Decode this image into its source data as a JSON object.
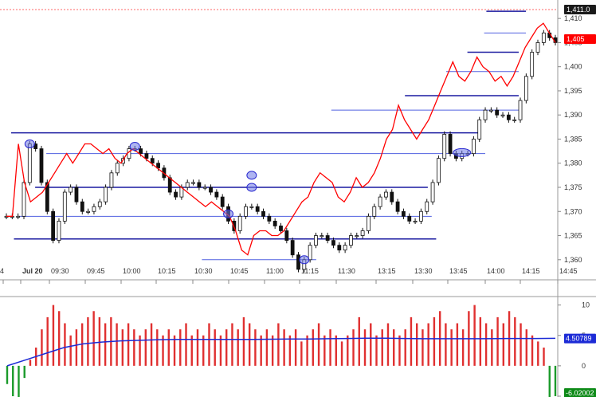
{
  "chart_data": [
    {
      "type": "candlestick-line",
      "ylim": [
        1356,
        1413
      ],
      "y_ticks": [
        "1,360",
        "1,365",
        "1,370",
        "1,375",
        "1,380",
        "1,385",
        "1,390",
        "1,395",
        "1,400",
        "1,405",
        "1,410"
      ],
      "x_ticks": [
        "4",
        "Jul 20",
        "09:30",
        "09:45",
        "10:00",
        "10:15",
        "10:30",
        "10:45",
        "11:00",
        "11:15",
        "11:30",
        "13:15",
        "13:30",
        "13:45",
        "14:00",
        "14:15",
        "14:45"
      ],
      "price_tags": [
        {
          "value": "1,411.0",
          "bg": "#1a1a1a",
          "fg": "#ffffff"
        },
        {
          "value": "1,405",
          "bg": "#ff0000",
          "fg": "#ffffff"
        }
      ],
      "close_series": [
        1369,
        1369,
        1369,
        1376,
        1384,
        1383,
        1376,
        1370,
        1364,
        1368,
        1374,
        1375,
        1372,
        1370,
        1370,
        1371,
        1372,
        1375,
        1378,
        1380,
        1381,
        1383,
        1383,
        1382,
        1381,
        1380,
        1379,
        1377,
        1374,
        1373,
        1375,
        1376,
        1376,
        1375,
        1375,
        1374,
        1373,
        1371,
        1368,
        1366,
        1369,
        1371,
        1371,
        1370,
        1369,
        1368,
        1367,
        1366,
        1364,
        1361,
        1358,
        1360,
        1363,
        1365,
        1365,
        1364,
        1363,
        1362,
        1363,
        1365,
        1365,
        1366,
        1369,
        1371,
        1373,
        1374,
        1372,
        1370,
        1369,
        1368,
        1368,
        1370,
        1372,
        1376,
        1381,
        1386,
        1382,
        1381,
        1382,
        1382,
        1385,
        1389,
        1391,
        1391,
        1390,
        1390,
        1389,
        1389,
        1393,
        1398,
        1403,
        1405,
        1407,
        1406,
        1405
      ],
      "red_series": [
        1369,
        1369,
        1384,
        1376,
        1372,
        1373,
        1374,
        1376,
        1378,
        1380,
        1382,
        1380,
        1382,
        1384,
        1384,
        1383,
        1382,
        1383,
        1381,
        1380,
        1382,
        1383,
        1382,
        1381,
        1380,
        1379,
        1378,
        1377,
        1376,
        1375,
        1374,
        1373,
        1372,
        1371,
        1372,
        1371,
        1370,
        1369,
        1366,
        1362,
        1361,
        1365,
        1366,
        1366,
        1365,
        1365,
        1366,
        1368,
        1370,
        1372,
        1373,
        1376,
        1378,
        1377,
        1376,
        1373,
        1372,
        1374,
        1377,
        1375,
        1376,
        1378,
        1381,
        1385,
        1387,
        1392,
        1389,
        1387,
        1385,
        1387,
        1389,
        1392,
        1395,
        1398,
        1401,
        1398,
        1397,
        1399,
        1402,
        1400,
        1399,
        1397,
        1398,
        1396,
        1398,
        1401,
        1404,
        1406,
        1408,
        1409,
        1407,
        1405
      ],
      "horizontal_levels": [
        {
          "price": 1411.5,
          "x_start_frac": 0.872,
          "x_end_frac": 0.943,
          "color": "#1a1aa0",
          "width": 1.5
        },
        {
          "price": 1407,
          "x_start_frac": 0.868,
          "x_end_frac": 0.943,
          "color": "#5060e0",
          "width": 1
        },
        {
          "price": 1403,
          "x_start_frac": 0.838,
          "x_end_frac": 0.93,
          "color": "#1a1aa0",
          "width": 1.5
        },
        {
          "price": 1399,
          "x_start_frac": 0.8,
          "x_end_frac": 0.93,
          "color": "#5060e0",
          "width": 1
        },
        {
          "price": 1394,
          "x_start_frac": 0.726,
          "x_end_frac": 0.93,
          "color": "#1a1aa0",
          "width": 1.5
        },
        {
          "price": 1391,
          "x_start_frac": 0.594,
          "x_end_frac": 0.93,
          "color": "#5060e0",
          "width": 1
        },
        {
          "price": 1386.3,
          "x_start_frac": 0.02,
          "x_end_frac": 0.862,
          "color": "#1a1aa0",
          "width": 1.5
        },
        {
          "price": 1382,
          "x_start_frac": 0.083,
          "x_end_frac": 0.87,
          "color": "#5060e0",
          "width": 1
        },
        {
          "price": 1375,
          "x_start_frac": 0.063,
          "x_end_frac": 0.767,
          "color": "#1a1aa0",
          "width": 1.5
        },
        {
          "price": 1369,
          "x_start_frac": 0.033,
          "x_end_frac": 0.774,
          "color": "#5060e0",
          "width": 1
        },
        {
          "price": 1364.3,
          "x_start_frac": 0.025,
          "x_end_frac": 0.782,
          "color": "#1a1aa0",
          "width": 1.5
        },
        {
          "price": 1360,
          "x_start_frac": 0.362,
          "x_end_frac": 0.567,
          "color": "#5060e0",
          "width": 1
        }
      ],
      "markers": [
        {
          "x_index": 4,
          "price": 1384
        },
        {
          "x_index": 22,
          "price": 1383.5
        },
        {
          "x_index": 38,
          "price": 1369.5
        },
        {
          "x_index": 42,
          "price": 1377.5
        },
        {
          "x_index": 42,
          "price": 1375
        },
        {
          "x_index": 51,
          "price": 1360
        },
        {
          "x_index": 78,
          "price": 1382.2
        }
      ]
    },
    {
      "type": "bar",
      "ylim": [
        -5,
        11
      ],
      "y_ticks": [
        "10",
        "5",
        "0",
        "-5"
      ],
      "value_tags": [
        {
          "value": "4.50789",
          "bg": "#1c2bd6",
          "fg": "#ffffff"
        },
        {
          "value": "-6.02002",
          "bg": "#0d8a17",
          "fg": "#ffffff"
        }
      ],
      "values": [
        -3,
        -5,
        -6,
        -2,
        1,
        3,
        6,
        8,
        10,
        9,
        7,
        5,
        6,
        7,
        8,
        9,
        8,
        7,
        8,
        7,
        6,
        7,
        6,
        5,
        6,
        7,
        6,
        5,
        6,
        5,
        6,
        7,
        5,
        6,
        5,
        7,
        6,
        5,
        6,
        7,
        6,
        8,
        7,
        6,
        5,
        6,
        5,
        7,
        6,
        5,
        6,
        4,
        5,
        6,
        7,
        5,
        6,
        5,
        4,
        5,
        6,
        8,
        6,
        7,
        5,
        6,
        7,
        6,
        5,
        6,
        8,
        7,
        6,
        7,
        8,
        9,
        7,
        6,
        7,
        6,
        9,
        10,
        8,
        7,
        6,
        8,
        7,
        9,
        8,
        7,
        6,
        5,
        4,
        3,
        -6,
        -5
      ],
      "average_series": [
        0,
        1,
        2,
        3,
        3.6,
        3.9,
        4.1,
        4.2,
        4.3,
        4.35,
        4.35,
        4.35,
        4.35,
        4.35,
        4.38,
        4.4,
        4.42,
        4.45,
        4.5,
        4.55,
        4.55,
        4.5,
        4.45,
        4.45,
        4.45,
        4.45,
        4.48,
        4.5,
        4.5,
        4.52
      ]
    }
  ]
}
